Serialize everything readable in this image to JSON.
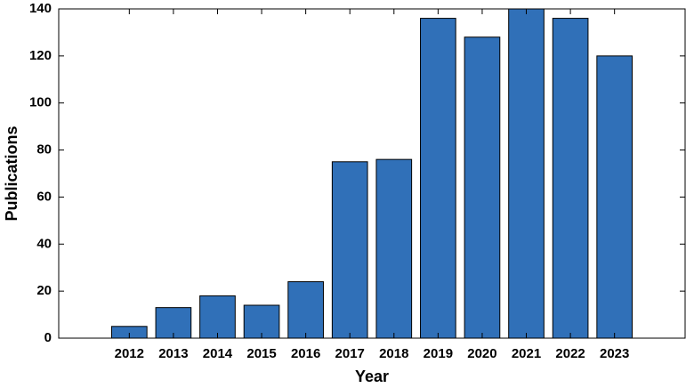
{
  "chart_data": {
    "type": "bar",
    "x_label": "Year",
    "y_label": "Publications",
    "categories": [
      "2012",
      "2013",
      "2014",
      "2015",
      "2016",
      "2017",
      "2018",
      "2019",
      "2020",
      "2021",
      "2022",
      "2023"
    ],
    "values": [
      5,
      13,
      18,
      14,
      24,
      75,
      76,
      136,
      128,
      140,
      136,
      120
    ],
    "color": "#3070b8",
    "ylim": [
      0,
      140
    ],
    "yticks": [
      0,
      20,
      40,
      60,
      80,
      100,
      120,
      140
    ],
    "grid": false
  }
}
